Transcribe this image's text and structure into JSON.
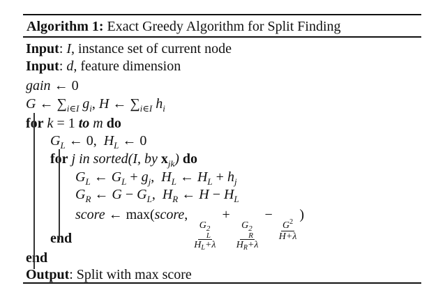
{
  "algorithm": {
    "title": [
      {
        "t": "Algorithm 1:",
        "s": "b"
      },
      {
        "t": " Exact Greedy Algorithm for Split Finding",
        "s": "r"
      }
    ],
    "lines": [
      {
        "indent": 0,
        "name": "input-instance-set",
        "segs": [
          {
            "t": "Input",
            "s": "b"
          },
          {
            "t": ": ",
            "s": "r"
          },
          {
            "t": "I",
            "s": "i"
          },
          {
            "t": ", instance set of current node",
            "s": "r"
          }
        ]
      },
      {
        "indent": 0,
        "name": "input-feature-dimension",
        "segs": [
          {
            "t": "Input",
            "s": "b"
          },
          {
            "t": ": ",
            "s": "r"
          },
          {
            "t": "d",
            "s": "i"
          },
          {
            "t": ", feature dimension",
            "s": "r"
          }
        ]
      },
      {
        "indent": 0,
        "name": "init-gain",
        "segs": [
          {
            "t": "gain",
            "s": "i"
          },
          {
            "t": " ← 0",
            "s": "r"
          }
        ]
      },
      {
        "indent": 0,
        "name": "init-sums",
        "segs": [
          {
            "t": "G",
            "s": "i"
          },
          {
            "t": " ← ∑",
            "s": "r"
          },
          {
            "t": "i∈I",
            "s": "sub i"
          },
          {
            "t": " g",
            "s": "i"
          },
          {
            "t": "i",
            "s": "sub i"
          },
          {
            "t": ", ",
            "s": "r"
          },
          {
            "t": "H",
            "s": "i"
          },
          {
            "t": " ← ∑",
            "s": "r"
          },
          {
            "t": "i∈I",
            "s": "sub i"
          },
          {
            "t": " h",
            "s": "i"
          },
          {
            "t": "i",
            "s": "sub i"
          }
        ]
      },
      {
        "indent": 0,
        "name": "for-k-loop",
        "segs": [
          {
            "t": "for",
            "s": "b"
          },
          {
            "t": " ",
            "s": "r"
          },
          {
            "t": "k",
            "s": "i"
          },
          {
            "t": " = 1 ",
            "s": "r"
          },
          {
            "t": "to",
            "s": "bi"
          },
          {
            "t": " ",
            "s": "r"
          },
          {
            "t": "m",
            "s": "i"
          },
          {
            "t": " ",
            "s": "r"
          },
          {
            "t": "do",
            "s": "b"
          }
        ]
      },
      {
        "indent": 1,
        "name": "reset-left",
        "segs": [
          {
            "t": "G",
            "s": "i"
          },
          {
            "t": "L",
            "s": "sub i"
          },
          {
            "t": " ← 0,  ",
            "s": "r"
          },
          {
            "t": "H",
            "s": "i"
          },
          {
            "t": "L",
            "s": "sub i"
          },
          {
            "t": " ← 0",
            "s": "r"
          }
        ]
      },
      {
        "indent": 1,
        "name": "for-j-loop",
        "segs": [
          {
            "t": "for",
            "s": "b"
          },
          {
            "t": " ",
            "s": "r"
          },
          {
            "t": "j in sorted(I, by ",
            "s": "i"
          },
          {
            "t": "x",
            "s": "b"
          },
          {
            "t": "jk",
            "s": "sub i"
          },
          {
            "t": ")",
            "s": "i"
          },
          {
            "t": " ",
            "s": "r"
          },
          {
            "t": "do",
            "s": "b"
          }
        ]
      },
      {
        "indent": 2,
        "name": "update-left",
        "segs": [
          {
            "t": "G",
            "s": "i"
          },
          {
            "t": "L",
            "s": "sub i"
          },
          {
            "t": " ← ",
            "s": "r"
          },
          {
            "t": "G",
            "s": "i"
          },
          {
            "t": "L",
            "s": "sub i"
          },
          {
            "t": " + ",
            "s": "r"
          },
          {
            "t": "g",
            "s": "i"
          },
          {
            "t": "j",
            "s": "sub i"
          },
          {
            "t": ",  ",
            "s": "r"
          },
          {
            "t": "H",
            "s": "i"
          },
          {
            "t": "L",
            "s": "sub i"
          },
          {
            "t": " ← ",
            "s": "r"
          },
          {
            "t": "H",
            "s": "i"
          },
          {
            "t": "L",
            "s": "sub i"
          },
          {
            "t": " + ",
            "s": "r"
          },
          {
            "t": "h",
            "s": "i"
          },
          {
            "t": "j",
            "s": "sub i"
          }
        ]
      },
      {
        "indent": 2,
        "name": "update-right",
        "segs": [
          {
            "t": "G",
            "s": "i"
          },
          {
            "t": "R",
            "s": "sub i"
          },
          {
            "t": " ← ",
            "s": "r"
          },
          {
            "t": "G",
            "s": "i"
          },
          {
            "t": " − ",
            "s": "r"
          },
          {
            "t": "G",
            "s": "i"
          },
          {
            "t": "L",
            "s": "sub i"
          },
          {
            "t": ",  ",
            "s": "r"
          },
          {
            "t": "H",
            "s": "i"
          },
          {
            "t": "R",
            "s": "sub i"
          },
          {
            "t": " ← ",
            "s": "r"
          },
          {
            "t": "H",
            "s": "i"
          },
          {
            "t": " − ",
            "s": "r"
          },
          {
            "t": "H",
            "s": "i"
          },
          {
            "t": "L",
            "s": "sub i"
          }
        ]
      },
      {
        "indent": 2,
        "name": "score-update",
        "segs": [
          {
            "t": "score",
            "s": "i"
          },
          {
            "t": " ← max(",
            "s": "r"
          },
          {
            "t": "score",
            "s": "i"
          },
          {
            "t": ", ",
            "s": "r"
          },
          {
            "s": "frac",
            "num": [
              {
                "t": "G",
                "s": "i"
              },
              {
                "s": "ss",
                "sup": "2",
                "sub": "L"
              }
            ],
            "den": [
              {
                "t": "H",
                "s": "i"
              },
              {
                "t": "L",
                "s": "sub i"
              },
              {
                "t": "+λ",
                "s": "i"
              }
            ]
          },
          {
            "t": " + ",
            "s": "r"
          },
          {
            "s": "frac",
            "num": [
              {
                "t": "G",
                "s": "i"
              },
              {
                "s": "ss",
                "sup": "2",
                "sub": "R"
              }
            ],
            "den": [
              {
                "t": "H",
                "s": "i"
              },
              {
                "t": "R",
                "s": "sub i"
              },
              {
                "t": "+λ",
                "s": "i"
              }
            ]
          },
          {
            "t": " − ",
            "s": "r"
          },
          {
            "s": "frac",
            "num": [
              {
                "t": "G",
                "s": "i"
              },
              {
                "t": "2",
                "s": "sup"
              }
            ],
            "den": [
              {
                "t": "H+λ",
                "s": "i"
              }
            ]
          },
          {
            "t": ")",
            "s": "r"
          }
        ]
      },
      {
        "indent": 1,
        "name": "end-inner-loop",
        "segs": [
          {
            "t": "end",
            "s": "b"
          }
        ]
      },
      {
        "indent": 0,
        "name": "end-outer-loop",
        "segs": [
          {
            "t": "end",
            "s": "b"
          }
        ]
      },
      {
        "indent": 0,
        "name": "output-line",
        "segs": [
          {
            "t": "Output",
            "s": "b"
          },
          {
            "t": ": Split with max score",
            "s": "r"
          }
        ]
      }
    ]
  }
}
